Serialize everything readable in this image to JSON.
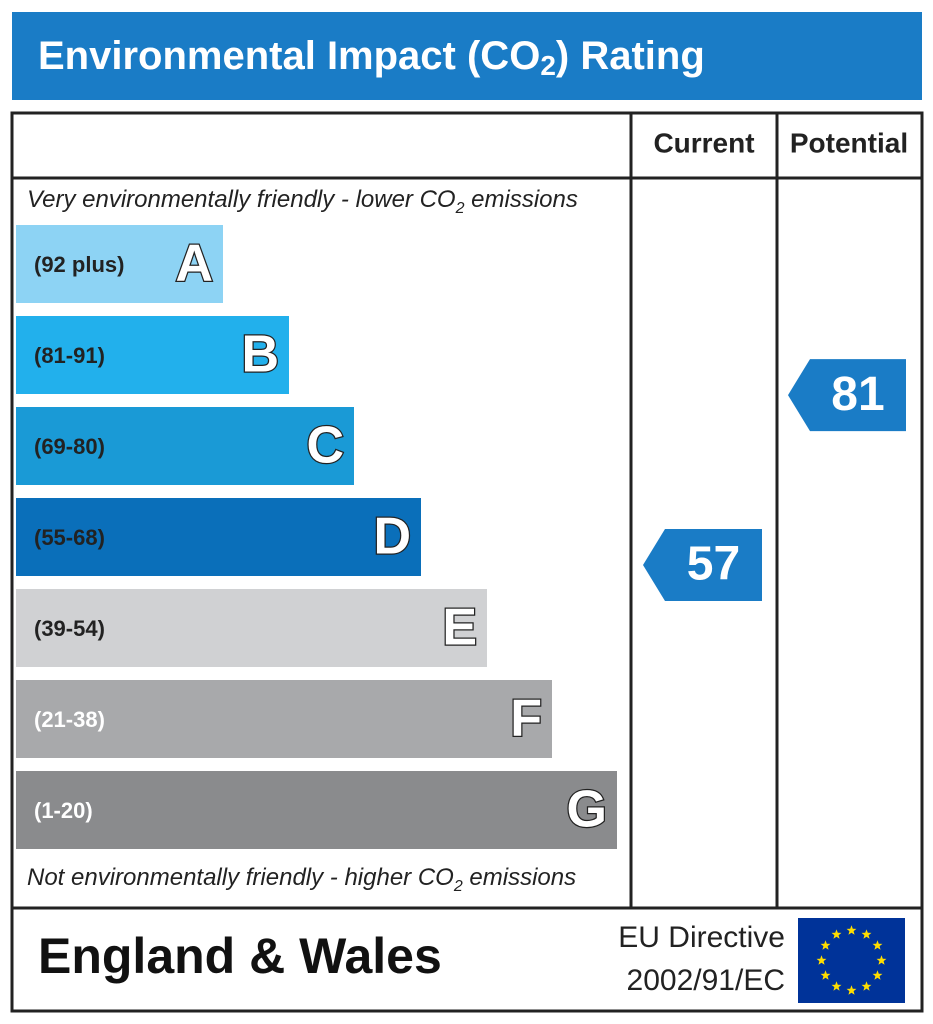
{
  "header": {
    "title": [
      "Environmental Impact (CO",
      "2",
      ") Rating"
    ]
  },
  "columns": [
    "Current",
    "Potential"
  ],
  "top_note": [
    "Very environmentally friendly - lower CO",
    "2",
    " emissions"
  ],
  "bottom_note": [
    "Not environmentally friendly - higher CO",
    "2",
    " emissions"
  ],
  "bands": [
    {
      "range": "(92 plus)",
      "letter": "A",
      "color": "#8dd3f4",
      "text_color": "#222"
    },
    {
      "range": "(81-91)",
      "letter": "B",
      "color": "#22b0ec",
      "text_color": "#222"
    },
    {
      "range": "(69-80)",
      "letter": "C",
      "color": "#1a9ad6",
      "text_color": "#222"
    },
    {
      "range": "(55-68)",
      "letter": "D",
      "color": "#0a6fba",
      "text_color": "#222"
    },
    {
      "range": "(39-54)",
      "letter": "E",
      "color": "#d0d1d3",
      "text_color": "#222"
    },
    {
      "range": "(21-38)",
      "letter": "F",
      "color": "#a8a9ab",
      "text_color": "#fff"
    },
    {
      "range": "(1-20)",
      "letter": "G",
      "color": "#8a8b8d",
      "text_color": "#fff"
    }
  ],
  "current": 57,
  "potential": 81,
  "arrow_color": "#1a7cc6",
  "footer": {
    "region": "England & Wales",
    "directive": [
      "EU Directive",
      "2002/91/EC"
    ]
  }
}
